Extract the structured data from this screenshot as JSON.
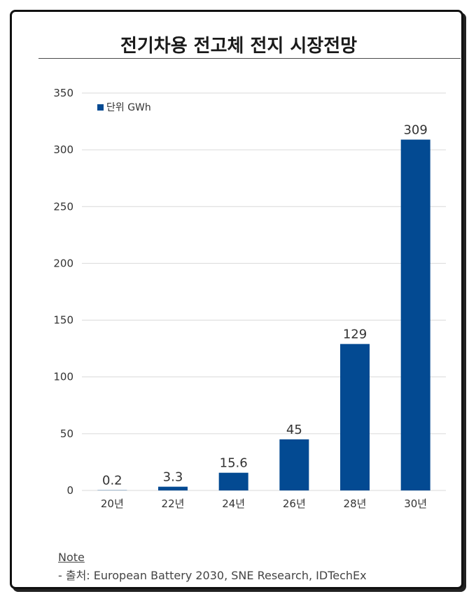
{
  "title": "전기차용 전고체 전지 시장전망",
  "legend": {
    "label": "단위 GWh",
    "color": "#034a92"
  },
  "chart_data": {
    "type": "bar",
    "categories": [
      "20년",
      "22년",
      "24년",
      "26년",
      "28년",
      "30년"
    ],
    "values": [
      0.2,
      3.3,
      15.6,
      45,
      129,
      309
    ],
    "value_labels": [
      "0.2",
      "3.3",
      "15.6",
      "45",
      "129",
      "309"
    ],
    "ylim": [
      0,
      350
    ],
    "yticks": [
      0,
      50,
      100,
      150,
      200,
      250,
      300,
      350
    ],
    "grid": true,
    "legend_position": "top-left",
    "bar_color": "#034a92"
  },
  "note": {
    "label": "Note",
    "text": "- 출처: European Battery 2030, SNE Research, IDTechEx"
  }
}
